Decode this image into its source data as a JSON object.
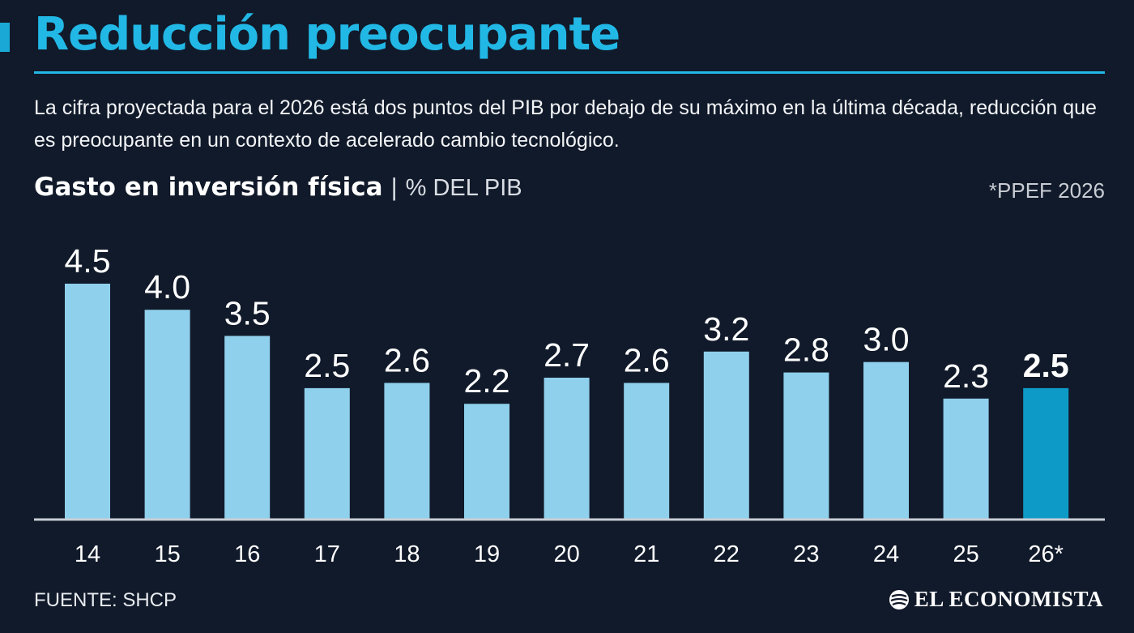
{
  "header": {
    "title": "Reducción preocupante",
    "subtitle": "La cifra proyectada para el 2026 está dos puntos del PIB por debajo de su máximo en la última década, reducción que es preocupante en un contexto de acelerado cambio tecnológico."
  },
  "chart_head": {
    "title": "Gasto en inversión física",
    "separator": "|",
    "unit": "% DEL PIB",
    "note": "*PPEF 2026"
  },
  "chart_data": {
    "type": "bar",
    "title": "Gasto en inversión física",
    "ylabel": "% DEL PIB",
    "xlabel": "",
    "categories": [
      "14",
      "15",
      "16",
      "17",
      "18",
      "19",
      "20",
      "21",
      "22",
      "23",
      "24",
      "25",
      "26*"
    ],
    "values": [
      4.5,
      4.0,
      3.5,
      2.5,
      2.6,
      2.2,
      2.7,
      2.6,
      3.2,
      2.8,
      3.0,
      2.3,
      2.5
    ],
    "value_labels": [
      "4.5",
      "4.0",
      "3.5",
      "2.5",
      "2.6",
      "2.2",
      "2.7",
      "2.6",
      "3.2",
      "2.8",
      "3.0",
      "2.3",
      "2.5"
    ],
    "highlight_index": 12,
    "ylim": [
      0,
      4.5
    ],
    "grid": false,
    "legend": "none",
    "colors": {
      "bar": "#8fd0ec",
      "highlight": "#0e9ac6",
      "baseline": "#c9ced6"
    }
  },
  "footer": {
    "source": "FUENTE: SHCP",
    "brand": "EL ECONOMISTA"
  },
  "colors": {
    "background": "#111a2a",
    "accent": "#22b8e6"
  },
  "icons": {
    "brand": "globe-icon"
  }
}
